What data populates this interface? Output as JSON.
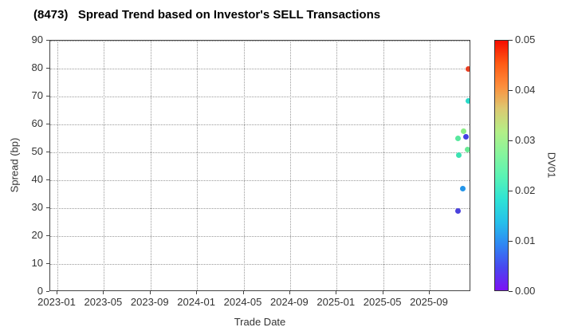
{
  "chart_data": {
    "type": "scatter",
    "title": "(8473)   Spread Trend based on Investor's SELL Transactions",
    "xlabel": "Trade Date",
    "ylabel": "Spread (bp)",
    "ylim": [
      0,
      90
    ],
    "grid": "dotted",
    "x_tick_labels": [
      "2023-01",
      "2023-05",
      "2023-09",
      "2024-01",
      "2024-05",
      "2024-09",
      "2025-01",
      "2025-05",
      "2025-09"
    ],
    "y_tick_labels": [
      0,
      10,
      20,
      30,
      40,
      50,
      60,
      70,
      80,
      90
    ],
    "x_range_dates": [
      "2022-12-13",
      "2025-12-19"
    ],
    "points": [
      {
        "date": "2025-12-10",
        "spread": 80.0,
        "dv01": 0.047,
        "color": "#e93f22"
      },
      {
        "date": "2025-12-10",
        "spread": 68.5,
        "dv01": 0.019,
        "color": "#27dac9"
      },
      {
        "date": "2025-11-29",
        "spread": 57.5,
        "dv01": 0.029,
        "color": "#8aee85"
      },
      {
        "date": "2025-12-05",
        "spread": 55.5,
        "dv01": 0.004,
        "color": "#4340e2"
      },
      {
        "date": "2025-11-15",
        "spread": 55.0,
        "dv01": 0.024,
        "color": "#58e89e"
      },
      {
        "date": "2025-12-08",
        "spread": 51.0,
        "dv01": 0.026,
        "color": "#67ea93"
      },
      {
        "date": "2025-11-17",
        "spread": 49.0,
        "dv01": 0.022,
        "color": "#3ce2b2"
      },
      {
        "date": "2025-11-27",
        "spread": 37.0,
        "dv01": 0.013,
        "color": "#2495e9"
      },
      {
        "date": "2025-11-15",
        "spread": 29.0,
        "dv01": 0.004,
        "color": "#4a42dd"
      }
    ],
    "colorbar": {
      "label": "DV01",
      "range": [
        0.0,
        0.05
      ],
      "tick_labels": [
        "0.00",
        "0.01",
        "0.02",
        "0.03",
        "0.04",
        "0.05"
      ],
      "gradient_bottom_to_top": [
        "#7d11f3",
        "#4947f0",
        "#2f86f3",
        "#25c0ea",
        "#2fe3d5",
        "#5af3b5",
        "#86f59d",
        "#b4ef87",
        "#dcc971",
        "#fd8e3c",
        "#ff5a14",
        "#f50d00"
      ]
    }
  },
  "style": {
    "text_color": "#333333",
    "grid_color": "#9a9a9a",
    "spine_color": "#444444",
    "background": "#ffffff"
  }
}
